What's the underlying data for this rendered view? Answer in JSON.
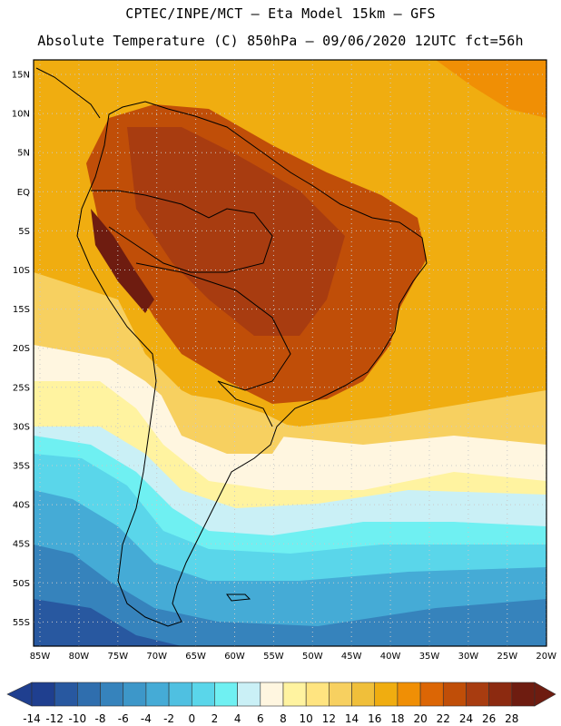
{
  "header": {
    "line1": "CPTEC/INPE/MCT –  Eta Model 15km – GFS",
    "line2": "Absolute Temperature (C) 850hPa – 09/06/2020 12UTC fct=56h"
  },
  "map": {
    "lat_labels": [
      "15N",
      "10N",
      "5N",
      "EQ",
      "5S",
      "10S",
      "15S",
      "20S",
      "25S",
      "30S",
      "35S",
      "40S",
      "45S",
      "50S",
      "55S"
    ],
    "lon_labels": [
      "85W",
      "80W",
      "75W",
      "70W",
      "65W",
      "60W",
      "55W",
      "50W",
      "45W",
      "40W",
      "35W",
      "30W",
      "25W",
      "20W"
    ],
    "grid": "dotted"
  },
  "colorbar": {
    "labels": [
      "-14",
      "-12",
      "-10",
      "-8",
      "-6",
      "-4",
      "-2",
      "0",
      "2",
      "4",
      "6",
      "8",
      "10",
      "12",
      "14",
      "16",
      "18",
      "20",
      "22",
      "24",
      "26",
      "28"
    ],
    "colors": [
      "#1f3f8f",
      "#2858a0",
      "#2f6eae",
      "#3683bc",
      "#3d97c9",
      "#45abd6",
      "#4fc0e1",
      "#5ad6ea",
      "#6ff0f2",
      "#caf0f6",
      "#fff6e0",
      "#fff3a0",
      "#ffe480",
      "#f7d060",
      "#f0bf3a",
      "#f0ad10",
      "#f08f05",
      "#dc6605",
      "#c04e08",
      "#a83c10",
      "#8c2a10",
      "#6e1c10"
    ]
  }
}
